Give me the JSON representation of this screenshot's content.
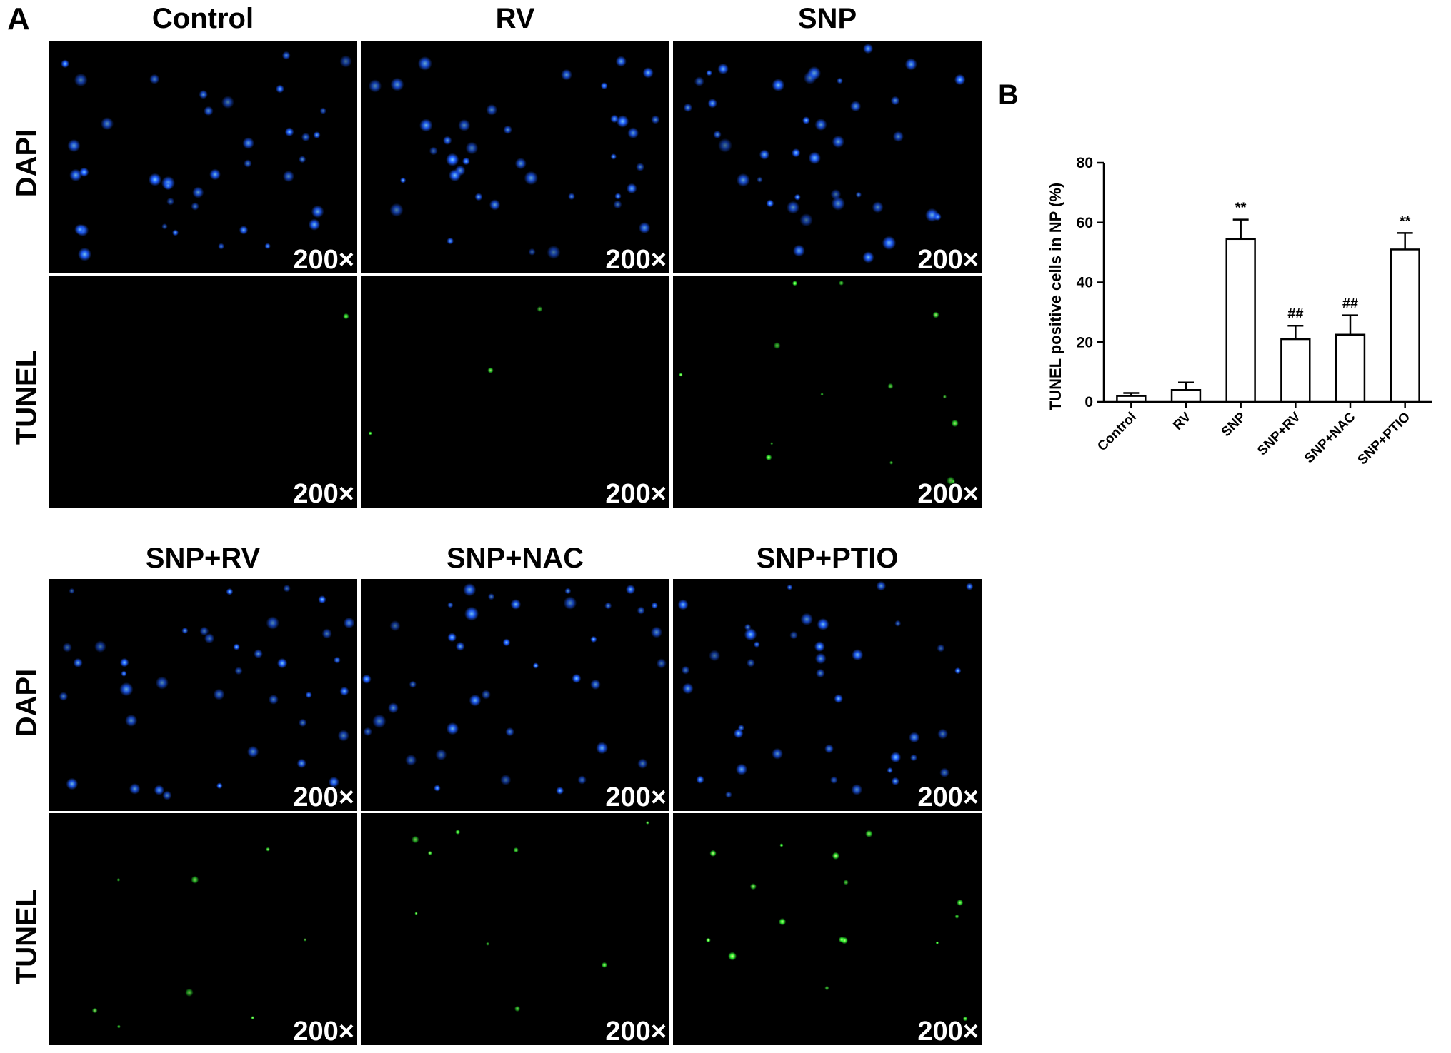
{
  "panel_a": {
    "letter": "A",
    "magnification": "200×",
    "groups": [
      "Control",
      "RV",
      "SNP",
      "SNP+RV",
      "SNP+NAC",
      "SNP+PTIO"
    ],
    "rows": [
      "DAPI",
      "TUNEL"
    ],
    "colors": {
      "dapi": "#1e5cff",
      "tunel": "#33ff33",
      "background": "#000000"
    }
  },
  "chart_data": {
    "type": "bar",
    "panel_letter": "B",
    "title": "",
    "xlabel": "",
    "ylabel": "TUNEL positive cells in NP (%)",
    "ylim": [
      0,
      80
    ],
    "yticks": [
      "0",
      "20",
      "40",
      "60",
      "80"
    ],
    "categories": [
      "Control",
      "RV",
      "SNP",
      "SNP+RV",
      "SNP+NAC",
      "SNP+PTIO"
    ],
    "values": [
      2,
      4,
      54.5,
      21,
      22.5,
      51
    ],
    "errors": [
      1,
      2.5,
      6.5,
      4.5,
      6.5,
      5.5
    ],
    "annotations": [
      "",
      "",
      "**",
      "##",
      "##",
      "**"
    ],
    "bar_fill": "#ffffff",
    "bar_edge": "#000000",
    "grid": false
  }
}
